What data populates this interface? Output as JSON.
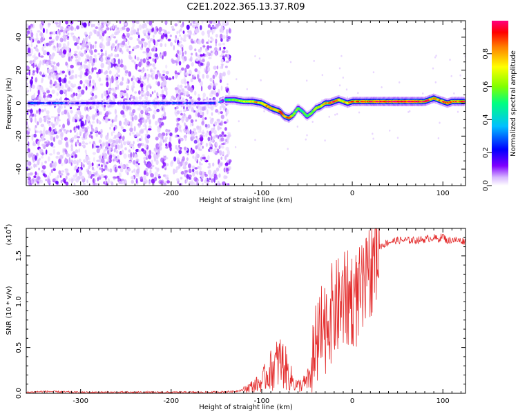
{
  "chart_data": [
    {
      "type": "heatmap",
      "title": "C2E1.2022.365.13.37.R09",
      "xlabel": "Height of straight line (km)",
      "ylabel": "Frequency (Hz)",
      "xlim": [
        -360,
        125
      ],
      "ylim": [
        -50,
        50
      ],
      "xticks": [
        -300,
        -200,
        -100,
        0,
        100
      ],
      "yticks": [
        -40,
        -20,
        0,
        20,
        40
      ],
      "colorbar": {
        "label": "Normalized spectral amplitude",
        "ticks": [
          "0.0",
          "0.2",
          "0.4",
          "0.6",
          "0.8"
        ],
        "range": [
          0,
          1
        ],
        "colormap": [
          "#ffffff",
          "#d8b8ff",
          "#8000ff",
          "#0000ff",
          "#00c0ff",
          "#00ff80",
          "#80ff00",
          "#ffff00",
          "#ff8000",
          "#ff0000",
          "#ff0080"
        ]
      },
      "ridge": {
        "x": [
          -355,
          -340,
          -330,
          -300,
          -250,
          -210,
          -190,
          -165,
          -150,
          -140,
          -130,
          -120,
          -110,
          -100,
          -90,
          -80,
          -75,
          -70,
          -65,
          -60,
          -55,
          -50,
          -45,
          -40,
          -35,
          -30,
          -25,
          -20,
          -15,
          -10,
          -5,
          0,
          10,
          20,
          30,
          40,
          50,
          60,
          70,
          80,
          85,
          90,
          95,
          100,
          105,
          110,
          120
        ],
        "y": [
          0,
          0,
          0,
          0,
          0,
          0,
          0,
          0,
          0,
          2,
          2,
          1,
          1,
          0,
          -3,
          -5,
          -8,
          -9,
          -7,
          -3,
          -5,
          -8,
          -6,
          -3,
          -2,
          0,
          0,
          1,
          2,
          1,
          0,
          1,
          1,
          1,
          1,
          1,
          1,
          1,
          1,
          1,
          2,
          3,
          2,
          1,
          0,
          1,
          1
        ],
        "amplitude": [
          0.3,
          0.25,
          0.3,
          0.2,
          0.2,
          0.25,
          0.25,
          0.2,
          0.3,
          0.45,
          0.55,
          0.6,
          0.7,
          0.7,
          0.75,
          0.8,
          0.7,
          0.75,
          0.6,
          0.5,
          0.45,
          0.5,
          0.55,
          0.6,
          0.65,
          0.7,
          0.75,
          0.8,
          0.7,
          0.65,
          0.7,
          0.75,
          0.8,
          0.85,
          0.85,
          0.9,
          0.9,
          0.9,
          0.9,
          0.85,
          0.8,
          0.75,
          0.7,
          0.8,
          0.75,
          0.8,
          0.8
        ]
      }
    },
    {
      "type": "line",
      "xlabel": "Height of straight line (km)",
      "ylabel": "SNR (10 * v/v)",
      "multiplier": "(x10",
      "multiplier_exp": "4",
      "multiplier_close": ")",
      "xlim": [
        -360,
        125
      ],
      "ylim": [
        0,
        1.8
      ],
      "xticks": [
        -300,
        -200,
        -100,
        0,
        100
      ],
      "yticks": [
        "0.0",
        "0.5",
        "1.0",
        "1.5"
      ],
      "color": "#e32b2b",
      "series": [
        {
          "x": [
            -360,
            -340,
            -300,
            -250,
            -200,
            -160,
            -130,
            -120,
            -110,
            -100,
            -95,
            -90,
            -85,
            -80,
            -75,
            -70,
            -65,
            -60,
            -55,
            -50,
            -45,
            -40,
            -35,
            -30,
            -25,
            -20,
            -15,
            -10,
            -5,
            0,
            5,
            10,
            15,
            20,
            25,
            30,
            40,
            50,
            60,
            70,
            80,
            90,
            95,
            100,
            105,
            110,
            115,
            125
          ],
          "y": [
            0.01,
            0.02,
            0.01,
            0.01,
            0.01,
            0.01,
            0.02,
            0.04,
            0.08,
            0.12,
            0.2,
            0.25,
            0.3,
            0.35,
            0.3,
            0.2,
            0.12,
            0.08,
            0.1,
            0.12,
            0.25,
            0.45,
            0.6,
            0.75,
            0.85,
            0.9,
            0.95,
            1.0,
            1.02,
            1.05,
            1.02,
            1.08,
            1.15,
            1.35,
            1.5,
            1.6,
            1.65,
            1.67,
            1.67,
            1.67,
            1.68,
            1.7,
            1.68,
            1.72,
            1.66,
            1.68,
            1.67,
            1.66
          ]
        }
      ]
    }
  ]
}
